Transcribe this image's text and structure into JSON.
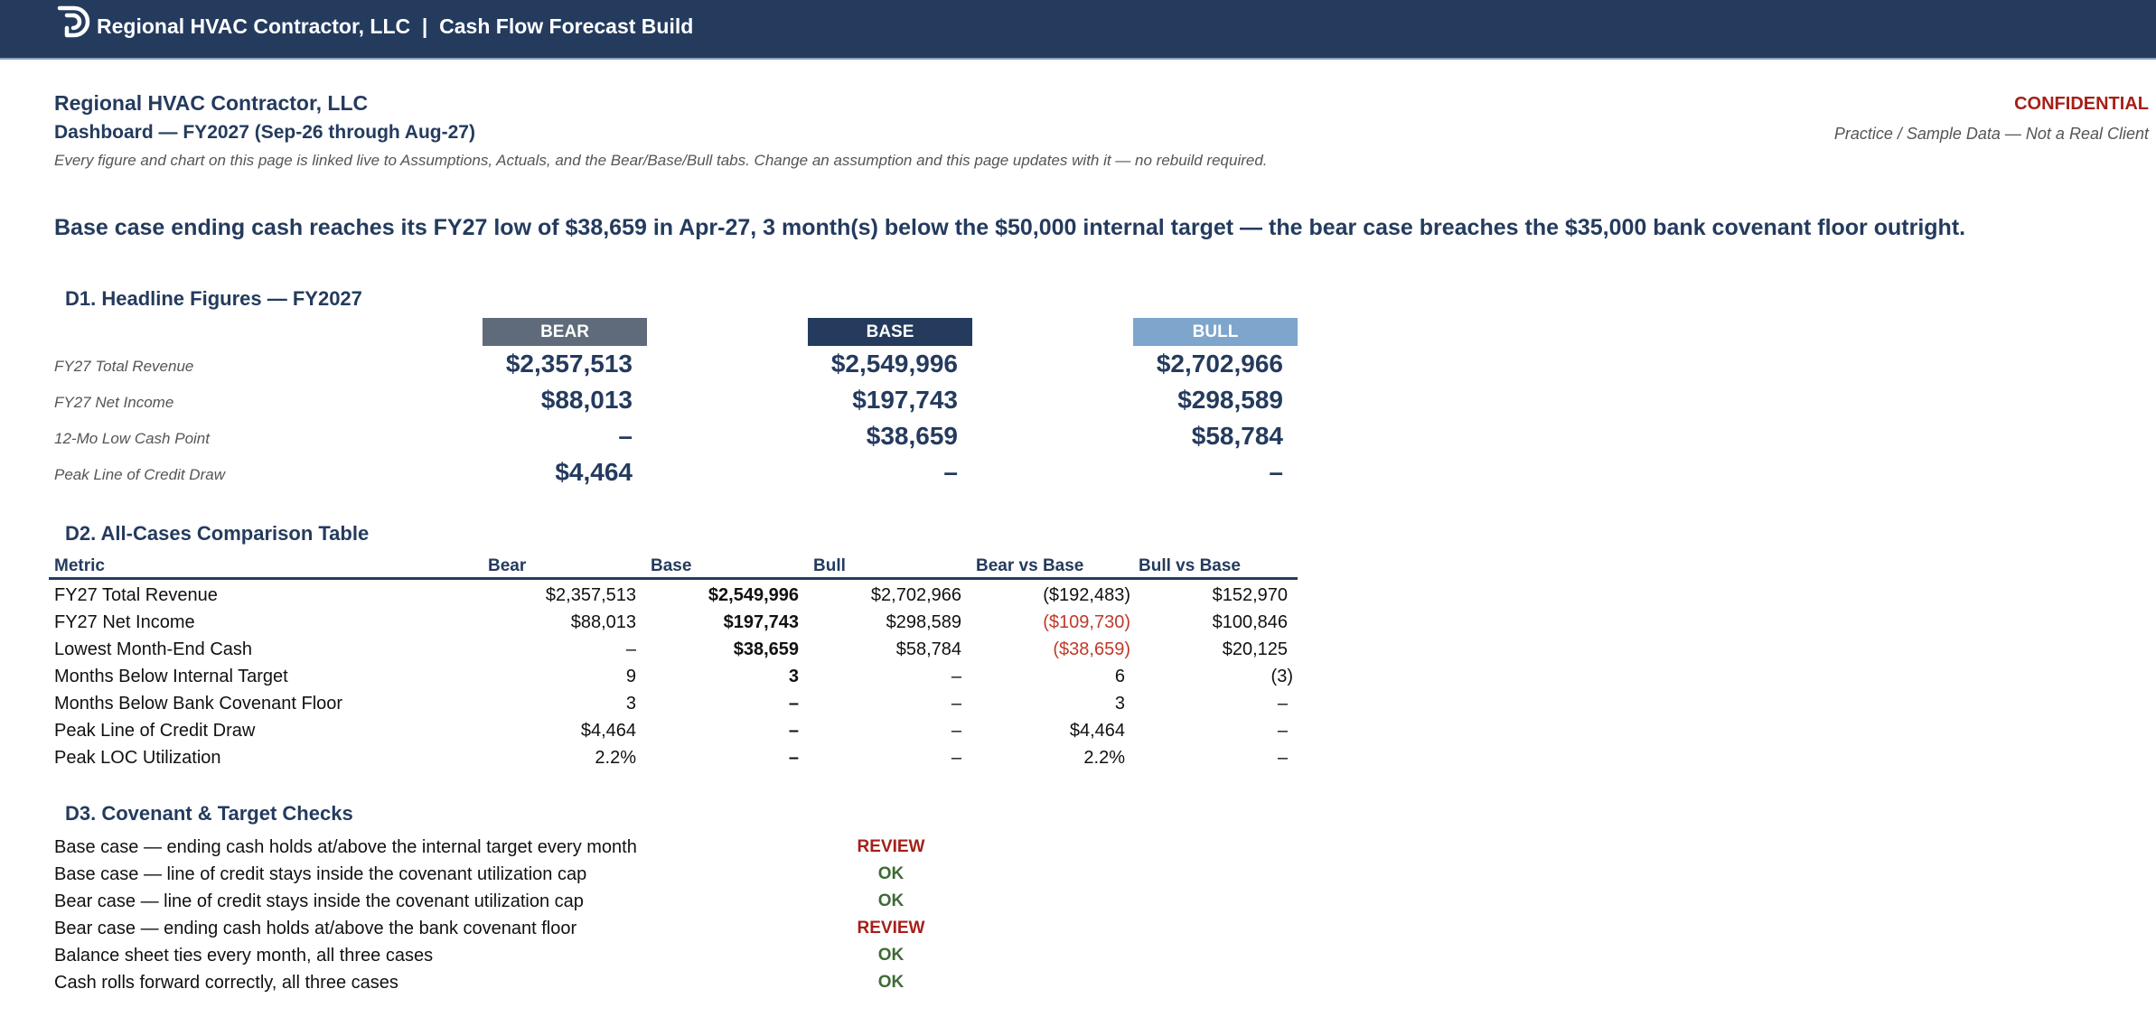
{
  "banner": {
    "icon": "company-logo-icon",
    "title": "Regional HVAC Contractor, LLC  |  Cash Flow Forecast Build"
  },
  "header": {
    "company": "Regional HVAC Contractor, LLC",
    "dashboard_title": "Dashboard — FY2027 (Sep-26 through Aug-27)",
    "note": "Every figure and chart on this page is linked live to Assumptions, Actuals, and the Bear/Base/Bull tabs. Change an assumption and this page updates with it — no rebuild required.",
    "confidential": "CONFIDENTIAL",
    "practice": "Practice / Sample Data — Not a Real Client"
  },
  "headline": "Base case ending cash reaches its FY27 low of $38,659 in Apr-27, 3 month(s) below the $50,000 internal target — the bear case breaches the $35,000 bank covenant floor outright.",
  "colors": {
    "bear": "#5f6b7a",
    "base": "#243b5e",
    "bull": "#7ea5cc",
    "review": "#a52019",
    "ok": "#3d6b35",
    "negative": "#c0392b"
  },
  "d1": {
    "title": "D1.  Headline Figures — FY2027",
    "cases": [
      "BEAR",
      "BASE",
      "BULL"
    ],
    "rows": [
      {
        "label": "FY27 Total Revenue",
        "values": [
          "$2,357,513",
          "$2,549,996",
          "$2,702,966"
        ]
      },
      {
        "label": "FY27 Net Income",
        "values": [
          "$88,013",
          "$197,743",
          "$298,589"
        ]
      },
      {
        "label": "12-Mo Low Cash Point",
        "values": [
          "–",
          "$38,659",
          "$58,784"
        ]
      },
      {
        "label": "Peak Line of Credit Draw",
        "values": [
          "$4,464",
          "–",
          "–"
        ]
      }
    ]
  },
  "d2": {
    "title": "D2.  All-Cases Comparison Table",
    "columns": [
      "Metric",
      "Bear",
      "Base",
      "Bull",
      "Bear vs Base",
      "Bull vs Base"
    ],
    "rows": [
      {
        "label": "FY27 Total Revenue",
        "values": [
          "$2,357,513",
          "$2,549,996",
          "$2,702,966",
          "($192,483)",
          "$152,970"
        ]
      },
      {
        "label": "FY27 Net Income",
        "values": [
          "$88,013",
          "$197,743",
          "$298,589",
          "($109,730)",
          "$100,846"
        ]
      },
      {
        "label": "Lowest Month-End Cash",
        "values": [
          "–",
          "$38,659",
          "$58,784",
          "($38,659)",
          "$20,125"
        ]
      },
      {
        "label": "Months Below Internal Target",
        "values": [
          "9",
          "3",
          "–",
          "6",
          "(3)"
        ]
      },
      {
        "label": "Months Below Bank Covenant Floor",
        "values": [
          "3",
          "–",
          "–",
          "3",
          "–"
        ]
      },
      {
        "label": "Peak Line of Credit Draw",
        "values": [
          "$4,464",
          "–",
          "–",
          "$4,464",
          "–"
        ]
      },
      {
        "label": "Peak LOC Utilization",
        "values": [
          "2.2%",
          "–",
          "–",
          "2.2%",
          "–"
        ]
      }
    ]
  },
  "d3": {
    "title": "D3.  Covenant & Target Checks",
    "checks": [
      {
        "label": "Base case — ending cash holds at/above the internal target every month",
        "status": "REVIEW"
      },
      {
        "label": "Base case — line of credit stays inside the covenant utilization cap",
        "status": "OK"
      },
      {
        "label": "Bear case — line of credit stays inside the covenant utilization cap",
        "status": "OK"
      },
      {
        "label": "Bear case — ending cash holds at/above the bank covenant floor",
        "status": "REVIEW"
      },
      {
        "label": "Balance sheet ties every month, all three cases",
        "status": "OK"
      },
      {
        "label": "Cash rolls forward correctly, all three cases",
        "status": "OK"
      }
    ]
  }
}
